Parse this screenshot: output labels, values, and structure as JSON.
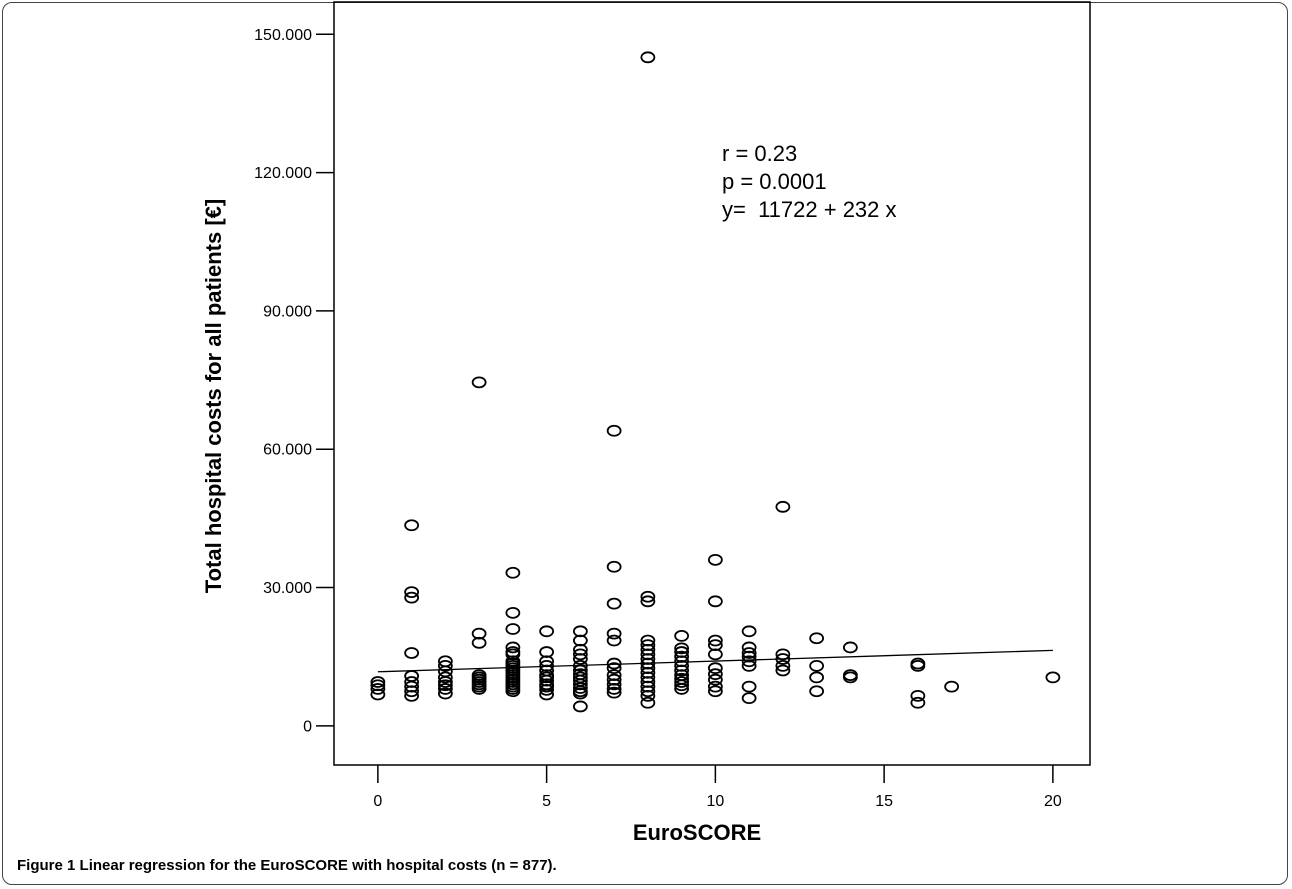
{
  "caption": {
    "label": "Figure 1",
    "text": "Linear regression for the EuroSCORE with hospital costs (n = 877)."
  },
  "annotation": {
    "r": "r = 0.23",
    "p": "p = 0.0001",
    "equation": "y=  11722 + 232 x"
  },
  "chart_data": {
    "type": "scatter",
    "title": "",
    "xlabel": "EuroSCORE",
    "ylabel": "Total hospital costs for all patients [€]",
    "xlim": [
      -1.3,
      21.1
    ],
    "ylim": [
      -8500,
      157000
    ],
    "x_ticks": [
      0,
      5,
      10,
      15,
      20
    ],
    "x_tick_labels": [
      "0",
      "5",
      "10",
      "15",
      "20"
    ],
    "y_ticks": [
      0,
      30000,
      60000,
      90000,
      120000,
      150000
    ],
    "y_tick_labels": [
      "0",
      "30.000",
      "60.000",
      "90.000",
      "120.000",
      "150.000"
    ],
    "grid": false,
    "marker": "open-circle",
    "colors": {
      "marker": "#000000",
      "line": "#000000",
      "frame": "#000000"
    },
    "regression": {
      "intercept": 11722,
      "slope": 232,
      "x_range": [
        0,
        20
      ]
    },
    "points": [
      [
        0,
        6800
      ],
      [
        0,
        8000
      ],
      [
        0,
        8800
      ],
      [
        0,
        9500
      ],
      [
        1,
        6500
      ],
      [
        1,
        7500
      ],
      [
        1,
        8500
      ],
      [
        1,
        9500
      ],
      [
        1,
        10800
      ],
      [
        1,
        15800
      ],
      [
        1,
        27800
      ],
      [
        1,
        29000
      ],
      [
        1,
        43500
      ],
      [
        2,
        7000
      ],
      [
        2,
        8000
      ],
      [
        2,
        8800
      ],
      [
        2,
        9500
      ],
      [
        2,
        10500
      ],
      [
        2,
        11800
      ],
      [
        2,
        13000
      ],
      [
        2,
        14000
      ],
      [
        3,
        8000
      ],
      [
        3,
        8500
      ],
      [
        3,
        9000
      ],
      [
        3,
        9500
      ],
      [
        3,
        10000
      ],
      [
        3,
        10500
      ],
      [
        3,
        11000
      ],
      [
        3,
        18000
      ],
      [
        3,
        20000
      ],
      [
        3,
        74500
      ],
      [
        4,
        7500
      ],
      [
        4,
        8000
      ],
      [
        4,
        8500
      ],
      [
        4,
        9000
      ],
      [
        4,
        9500
      ],
      [
        4,
        10000
      ],
      [
        4,
        10500
      ],
      [
        4,
        11000
      ],
      [
        4,
        11500
      ],
      [
        4,
        12000
      ],
      [
        4,
        12500
      ],
      [
        4,
        13000
      ],
      [
        4,
        13500
      ],
      [
        4,
        14000
      ],
      [
        4,
        15500
      ],
      [
        4,
        16000
      ],
      [
        4,
        17000
      ],
      [
        4,
        21000
      ],
      [
        4,
        24500
      ],
      [
        4,
        33200
      ],
      [
        5,
        6800
      ],
      [
        5,
        7800
      ],
      [
        5,
        8500
      ],
      [
        5,
        9000
      ],
      [
        5,
        9800
      ],
      [
        5,
        10500
      ],
      [
        5,
        11000
      ],
      [
        5,
        12000
      ],
      [
        5,
        13000
      ],
      [
        5,
        14000
      ],
      [
        5,
        16000
      ],
      [
        5,
        20500
      ],
      [
        6,
        4200
      ],
      [
        6,
        7000
      ],
      [
        6,
        7500
      ],
      [
        6,
        8200
      ],
      [
        6,
        9000
      ],
      [
        6,
        9800
      ],
      [
        6,
        10500
      ],
      [
        6,
        11200
      ],
      [
        6,
        12000
      ],
      [
        6,
        13000
      ],
      [
        6,
        14500
      ],
      [
        6,
        15500
      ],
      [
        6,
        16500
      ],
      [
        6,
        18500
      ],
      [
        6,
        20500
      ],
      [
        7,
        7200
      ],
      [
        7,
        8000
      ],
      [
        7,
        9000
      ],
      [
        7,
        10000
      ],
      [
        7,
        11000
      ],
      [
        7,
        12500
      ],
      [
        7,
        13500
      ],
      [
        7,
        18500
      ],
      [
        7,
        20000
      ],
      [
        7,
        26500
      ],
      [
        7,
        34500
      ],
      [
        7,
        64000
      ],
      [
        8,
        5000
      ],
      [
        8,
        6500
      ],
      [
        8,
        7500
      ],
      [
        8,
        8500
      ],
      [
        8,
        9500
      ],
      [
        8,
        10500
      ],
      [
        8,
        11500
      ],
      [
        8,
        12500
      ],
      [
        8,
        13500
      ],
      [
        8,
        14500
      ],
      [
        8,
        15500
      ],
      [
        8,
        16500
      ],
      [
        8,
        17500
      ],
      [
        8,
        18500
      ],
      [
        8,
        27000
      ],
      [
        8,
        28000
      ],
      [
        8,
        145000
      ],
      [
        9,
        8000
      ],
      [
        9,
        8800
      ],
      [
        9,
        9500
      ],
      [
        9,
        10200
      ],
      [
        9,
        11000
      ],
      [
        9,
        12000
      ],
      [
        9,
        13000
      ],
      [
        9,
        14000
      ],
      [
        9,
        15000
      ],
      [
        9,
        16000
      ],
      [
        9,
        16800
      ],
      [
        9,
        19500
      ],
      [
        10,
        7500
      ],
      [
        10,
        8500
      ],
      [
        10,
        10000
      ],
      [
        10,
        11200
      ],
      [
        10,
        12500
      ],
      [
        10,
        15500
      ],
      [
        10,
        17500
      ],
      [
        10,
        18500
      ],
      [
        10,
        27000
      ],
      [
        10,
        36000
      ],
      [
        11,
        6000
      ],
      [
        11,
        8500
      ],
      [
        11,
        13000
      ],
      [
        11,
        14000
      ],
      [
        11,
        15000
      ],
      [
        11,
        15800
      ],
      [
        11,
        17000
      ],
      [
        11,
        20500
      ],
      [
        12,
        12000
      ],
      [
        12,
        13000
      ],
      [
        12,
        14500
      ],
      [
        12,
        15500
      ],
      [
        12,
        47500
      ],
      [
        13,
        7500
      ],
      [
        13,
        10500
      ],
      [
        13,
        13000
      ],
      [
        13,
        19000
      ],
      [
        14,
        10500
      ],
      [
        14,
        11000
      ],
      [
        14,
        17000
      ],
      [
        16,
        5000
      ],
      [
        16,
        6500
      ],
      [
        16,
        13000
      ],
      [
        16,
        13500
      ],
      [
        17,
        8500
      ],
      [
        20,
        10500
      ]
    ]
  }
}
